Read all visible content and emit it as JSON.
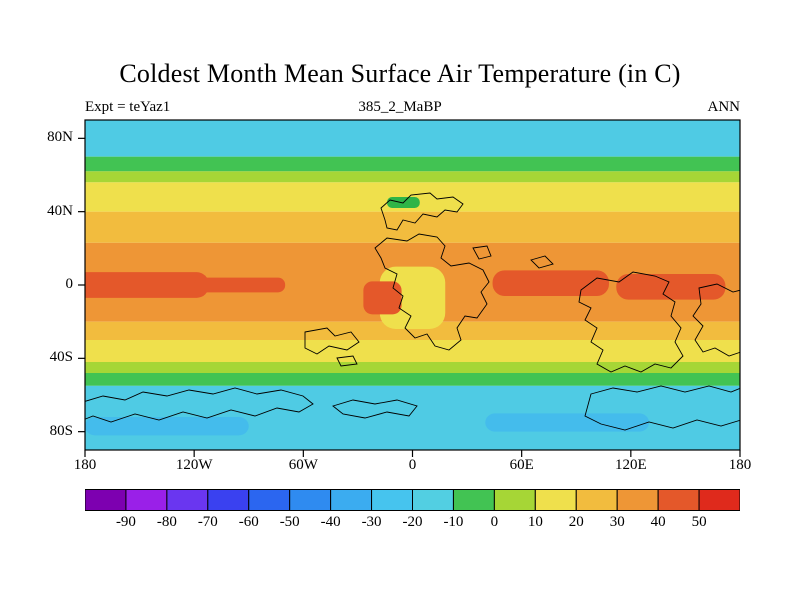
{
  "header": {
    "title": "Coldest Month Mean Surface Air Temperature (in C)",
    "left_label": "Expt = teYaz1",
    "center_label": "385_2_MaBP",
    "right_label": "ANN"
  },
  "chart_data": {
    "type": "heatmap",
    "title": "Coldest Month Mean Surface Air Temperature (in C)",
    "experiment": "teYaz1",
    "time_slice": "385_2_MaBP",
    "season": "ANN",
    "units": "C",
    "x_axis": {
      "ticks": [
        {
          "label": "180",
          "lon": -180
        },
        {
          "label": "120W",
          "lon": -120
        },
        {
          "label": "60W",
          "lon": -60
        },
        {
          "label": "0",
          "lon": 0
        },
        {
          "label": "60E",
          "lon": 60
        },
        {
          "label": "120E",
          "lon": 120
        },
        {
          "label": "180",
          "lon": 180
        }
      ]
    },
    "y_axis": {
      "ticks": [
        {
          "label": "80N",
          "lat": 80
        },
        {
          "label": "40N",
          "lat": 40
        },
        {
          "label": "0",
          "lat": 0
        },
        {
          "label": "40S",
          "lat": -40
        },
        {
          "label": "80S",
          "lat": -80
        }
      ]
    },
    "colorbar": {
      "tick_labels": [
        "-90",
        "-80",
        "-70",
        "-60",
        "-50",
        "-40",
        "-30",
        "-20",
        "-10",
        "0",
        "10",
        "20",
        "30",
        "40",
        "50"
      ],
      "colors": [
        "#7D00B0",
        "#9A20E8",
        "#6A36F0",
        "#3A41F0",
        "#2B66F0",
        "#2F8BF0",
        "#3BACF0",
        "#46C4EE",
        "#52CFE2",
        "#42C353",
        "#A6D636",
        "#EFE04C",
        "#F2BC3E",
        "#EE9636",
        "#E4582A",
        "#DF2A1C"
      ]
    },
    "zonal_bands": [
      {
        "lat_from": 90,
        "lat_to": 70,
        "value_range": "-30 to -10",
        "color": "#4FCBE4"
      },
      {
        "lat_from": 70,
        "lat_to": 62,
        "value_range": "-10 to 0",
        "color": "#42C353"
      },
      {
        "lat_from": 62,
        "lat_to": 56,
        "value_range": "0 to 10",
        "color": "#A6D636"
      },
      {
        "lat_from": 56,
        "lat_to": 40,
        "value_range": "10 to 20",
        "color": "#EFE04C"
      },
      {
        "lat_from": 40,
        "lat_to": 23,
        "value_range": "20 to 30",
        "color": "#F2BC3E"
      },
      {
        "lat_from": 23,
        "lat_to": -20,
        "value_range": "30 to 40",
        "color": "#EE9636"
      },
      {
        "lat_from": -20,
        "lat_to": -30,
        "value_range": "20 to 30",
        "color": "#F2BC3E"
      },
      {
        "lat_from": -30,
        "lat_to": -42,
        "value_range": "10 to 20",
        "color": "#EFE04C"
      },
      {
        "lat_from": -42,
        "lat_to": -48,
        "value_range": "0 to 10",
        "color": "#A6D636"
      },
      {
        "lat_from": -48,
        "lat_to": -55,
        "value_range": "-10 to 0",
        "color": "#42C353"
      },
      {
        "lat_from": -55,
        "lat_to": -90,
        "value_range": "-30 to -10",
        "color": "#4FCBE4"
      }
    ],
    "regional_features": [
      {
        "name": "central-continent-cool-tongue",
        "lon_from": -18,
        "lon_to": 18,
        "lat_from": 10,
        "lat_to": -24,
        "value_range": "10 to 20",
        "color": "#EFE04C",
        "rx": 16
      },
      {
        "name": "equatorial-warm-core-west",
        "lon_from": -190,
        "lon_to": -112,
        "lat_from": 7,
        "lat_to": -7,
        "value_range": "40 to 50",
        "color": "#E4582A",
        "rx": 12
      },
      {
        "name": "equatorial-warm-core-west-arm",
        "lon_from": -120,
        "lon_to": -70,
        "lat_from": 4,
        "lat_to": -4,
        "value_range": "40 to 50",
        "color": "#E4582A",
        "rx": 7
      },
      {
        "name": "equatorial-warm-core-central",
        "lon_from": -27,
        "lon_to": -6,
        "lat_from": 2,
        "lat_to": -16,
        "value_range": "40 to 50",
        "color": "#E4582A",
        "rx": 9
      },
      {
        "name": "equatorial-warm-core-east1",
        "lon_from": 44,
        "lon_to": 108,
        "lat_from": 8,
        "lat_to": -6,
        "value_range": "40 to 50",
        "color": "#E4582A",
        "rx": 12
      },
      {
        "name": "equatorial-warm-core-east2",
        "lon_from": 112,
        "lon_to": 172,
        "lat_from": 6,
        "lat_to": -8,
        "value_range": "40 to 50",
        "color": "#E4582A",
        "rx": 12
      },
      {
        "name": "northern-landmass-cold-spot",
        "lon_from": -14,
        "lon_to": 4,
        "lat_from": 48,
        "lat_to": 42,
        "value_range": "-10 to 0",
        "color": "#2FB447",
        "rx": 5
      },
      {
        "name": "antarctic-cold-patch-west",
        "lon_from": -180,
        "lon_to": -90,
        "lat_from": -72,
        "lat_to": -82,
        "value_range": "-40 to -30",
        "color": "#44BCEC",
        "rx": 10
      },
      {
        "name": "antarctic-cold-patch-east",
        "lon_from": 40,
        "lon_to": 130,
        "lat_from": -70,
        "lat_to": -80,
        "value_range": "-40 to -30",
        "color": "#44BCEC",
        "rx": 10
      }
    ],
    "coastlines": [
      "M300,100 L296,88 L305,80 L318,83 L326,75 L345,73 L352,79 L368,77 L378,84 L372,92 L360,90 L352,97 L338,94 L330,103 L318,100 L312,110 L302,108 Z",
      "M290,128 L302,118 L322,121 L334,114 L352,117 L360,126 L356,138 L366,146 L384,143 L398,150 L404,162 L396,172 L402,184 L392,198 L380,196 L372,208 L376,220 L364,230 L350,226 L342,214 L330,218 L320,208 L326,196 L314,188 L318,176 L308,168 L312,154 L300,148 L296,138 Z",
      "M388,128 L402,126 L406,136 L394,139 Z",
      "M446,140 L460,136 L468,144 L454,148 Z",
      "M496,170 L512,158 L534,162 L548,152 L570,156 L584,162 L578,174 L590,182 L586,196 L596,208 L590,222 L598,236 L586,248 L570,244 L556,252 L540,246 L526,252 L512,244 L518,230 L506,222 L512,208 L500,200 L506,188 L494,182 Z",
      "M614,168 L632,164 L648,172 L656,170 L656,232 L644,236 L630,228 L618,232 L610,220 L618,206 L608,196 L616,184 Z",
      "M220,212 L242,208 L250,216 L266,212 L274,222 L262,230 L244,226 L232,234 L220,228 Z",
      "M252,238 L268,236 L272,244 L256,246 Z",
      "M-2,282 L18,276 L40,280 L58,272 L82,276 L104,270 L128,274 L150,268 L172,274 L196,270 L218,276 L228,284 L214,292 L192,288 L170,296 L146,290 L122,298 L98,292 L74,300 L50,294 L26,302 L8,296 L-2,300 Z",
      "M248,286 L268,280 L290,284 L312,280 L332,286 L324,296 L302,292 L280,298 L258,294 Z",
      "M506,274 L528,268 L552,272 L576,266 L600,272 L624,266 L646,272 L656,268 L656,300 L636,306 L612,300 L588,308 L564,302 L540,310 L516,304 L500,296 Z"
    ]
  }
}
